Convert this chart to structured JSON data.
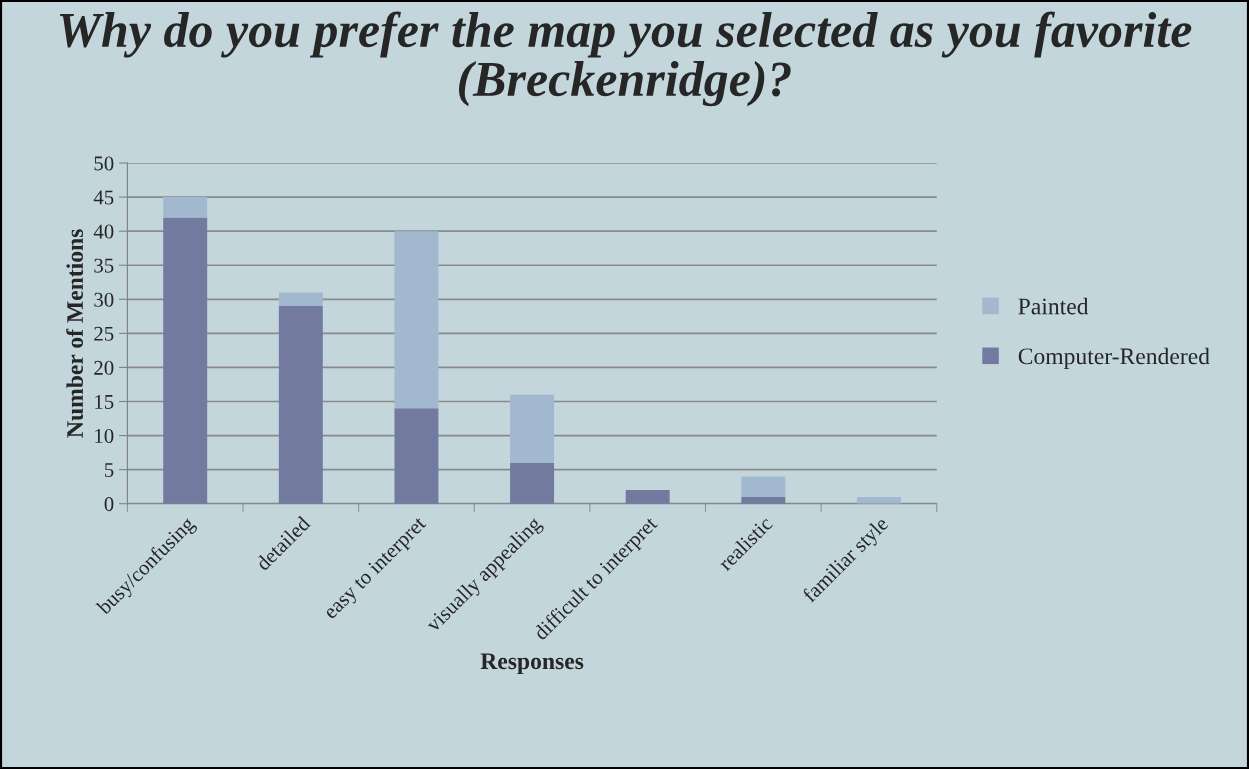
{
  "chart_data": {
    "type": "bar",
    "title": "Why do you prefer the map you selected as you favorite (Breckenridge)?",
    "xlabel": "Responses",
    "ylabel": "Number of Mentions",
    "categories": [
      "busy/confusing",
      "detailed",
      "easy to interpret",
      "visually appealing",
      "difficult to interpret",
      "realistic",
      "familiar style"
    ],
    "series": [
      {
        "name": "Computer-Rendered",
        "color": "#727aa0",
        "values": [
          42,
          29,
          14,
          6,
          2,
          1,
          0
        ]
      },
      {
        "name": "Painted",
        "color": "#a2b8cf",
        "values": [
          3,
          2,
          26,
          10,
          0,
          3,
          1
        ]
      }
    ],
    "stacked": true,
    "ylim": [
      0,
      50
    ],
    "yticks": [
      0,
      5,
      10,
      15,
      20,
      25,
      30,
      35,
      40,
      45,
      50
    ],
    "grid": "y",
    "legend": "right"
  }
}
